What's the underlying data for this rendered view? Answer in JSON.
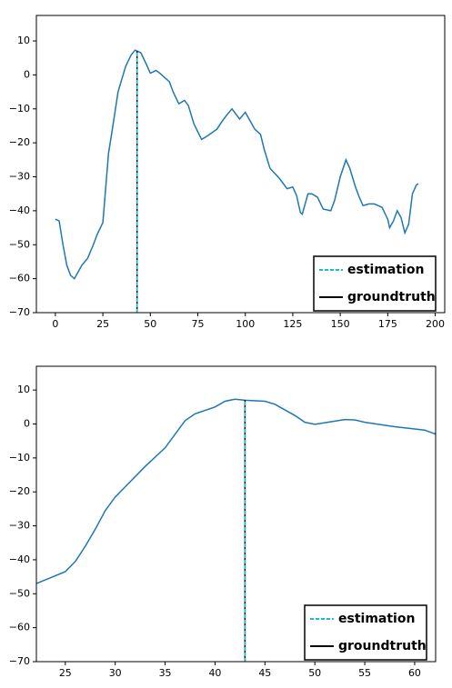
{
  "chart_data": [
    {
      "type": "line",
      "xlim": [
        -10,
        205
      ],
      "ylim": [
        -70,
        17.5
      ],
      "xticks": [
        0,
        25,
        50,
        75,
        100,
        125,
        150,
        175,
        200
      ],
      "yticks": [
        {
          "value": -70,
          "label": "−70"
        },
        {
          "value": -60,
          "label": "−60"
        },
        {
          "value": -50,
          "label": "−50"
        },
        {
          "value": -40,
          "label": "−40"
        },
        {
          "value": -30,
          "label": "−30"
        },
        {
          "value": -20,
          "label": "−20"
        },
        {
          "value": -10,
          "label": "−10"
        },
        0,
        10
      ],
      "series": [
        {
          "color": "#1f77b4",
          "x": [
            0,
            2,
            4,
            6,
            8,
            10,
            12,
            14,
            17,
            20,
            22,
            25,
            28,
            30,
            33,
            37,
            40,
            42,
            45,
            48,
            50,
            53,
            55,
            58,
            60,
            62,
            65,
            68,
            70,
            73,
            77,
            80,
            85,
            88,
            90,
            93,
            95,
            97,
            100,
            103,
            105,
            108,
            110,
            113,
            118,
            122,
            125,
            127,
            129,
            130,
            133,
            135,
            138,
            141,
            145,
            147,
            150,
            153,
            155,
            158,
            160,
            162,
            165,
            168,
            172,
            175,
            176,
            178,
            180,
            182,
            184,
            186,
            188,
            190,
            191
          ],
          "values": [
            -42.5,
            -43,
            -50,
            -56,
            -59,
            -60,
            -58,
            -56,
            -54,
            -50,
            -47,
            -43.5,
            -23,
            -16,
            -5,
            2.5,
            6,
            7.3,
            6.5,
            3,
            0.5,
            1.3,
            0.5,
            -1,
            -2,
            -5,
            -8.5,
            -7.5,
            -9,
            -14.5,
            -19,
            -18,
            -16,
            -13.5,
            -12,
            -10,
            -11.5,
            -13,
            -11,
            -14,
            -16,
            -17.5,
            -22,
            -27.5,
            -30.5,
            -33.5,
            -33,
            -35.5,
            -40.5,
            -41,
            -35,
            -35,
            -36,
            -39.5,
            -40,
            -37,
            -30,
            -25,
            -27.5,
            -33,
            -36,
            -38.5,
            -38,
            -38,
            -39,
            -42.5,
            -45,
            -43,
            -40,
            -42,
            -46.5,
            -44,
            -35,
            -32.5,
            -32
          ]
        }
      ],
      "markers": [
        {
          "name": "groundtruth",
          "x": 43,
          "color": "#000000",
          "style": "solid"
        },
        {
          "name": "estimation",
          "x": 43,
          "color": "#17becf",
          "style": "dashed"
        }
      ],
      "legend": "lower right"
    },
    {
      "type": "line",
      "xlim": [
        22.1,
        62.1
      ],
      "ylim": [
        -70,
        17
      ],
      "xticks": [
        25,
        30,
        35,
        40,
        45,
        50,
        55,
        60
      ],
      "yticks": [
        {
          "value": -70,
          "label": "−70"
        },
        {
          "value": -60,
          "label": "−60"
        },
        {
          "value": -50,
          "label": "−50"
        },
        {
          "value": -40,
          "label": "−40"
        },
        {
          "value": -30,
          "label": "−30"
        },
        {
          "value": -20,
          "label": "−20"
        },
        {
          "value": -10,
          "label": "−10"
        },
        0,
        10
      ],
      "series": [
        {
          "color": "#1f77b4",
          "x": [
            22.1,
            25,
            26,
            27,
            28,
            29,
            30,
            31,
            33,
            35,
            37,
            38,
            40,
            41,
            42,
            43,
            45,
            46,
            48,
            49,
            50,
            53,
            54,
            55,
            58,
            61,
            62.1
          ],
          "values": [
            -47,
            -43.5,
            -40.5,
            -36,
            -31,
            -25.5,
            -21.5,
            -18.5,
            -12.5,
            -7,
            1,
            3,
            5,
            6.7,
            7.3,
            7,
            6.7,
            5.8,
            2.5,
            0.5,
            -0.1,
            1.3,
            1.2,
            0.5,
            -0.8,
            -1.8,
            -3
          ]
        }
      ],
      "markers": [
        {
          "name": "groundtruth",
          "x": 43,
          "color": "#000000",
          "style": "solid"
        },
        {
          "name": "estimation",
          "x": 43,
          "color": "#17becf",
          "style": "dashed"
        }
      ],
      "legend": "lower right"
    }
  ]
}
